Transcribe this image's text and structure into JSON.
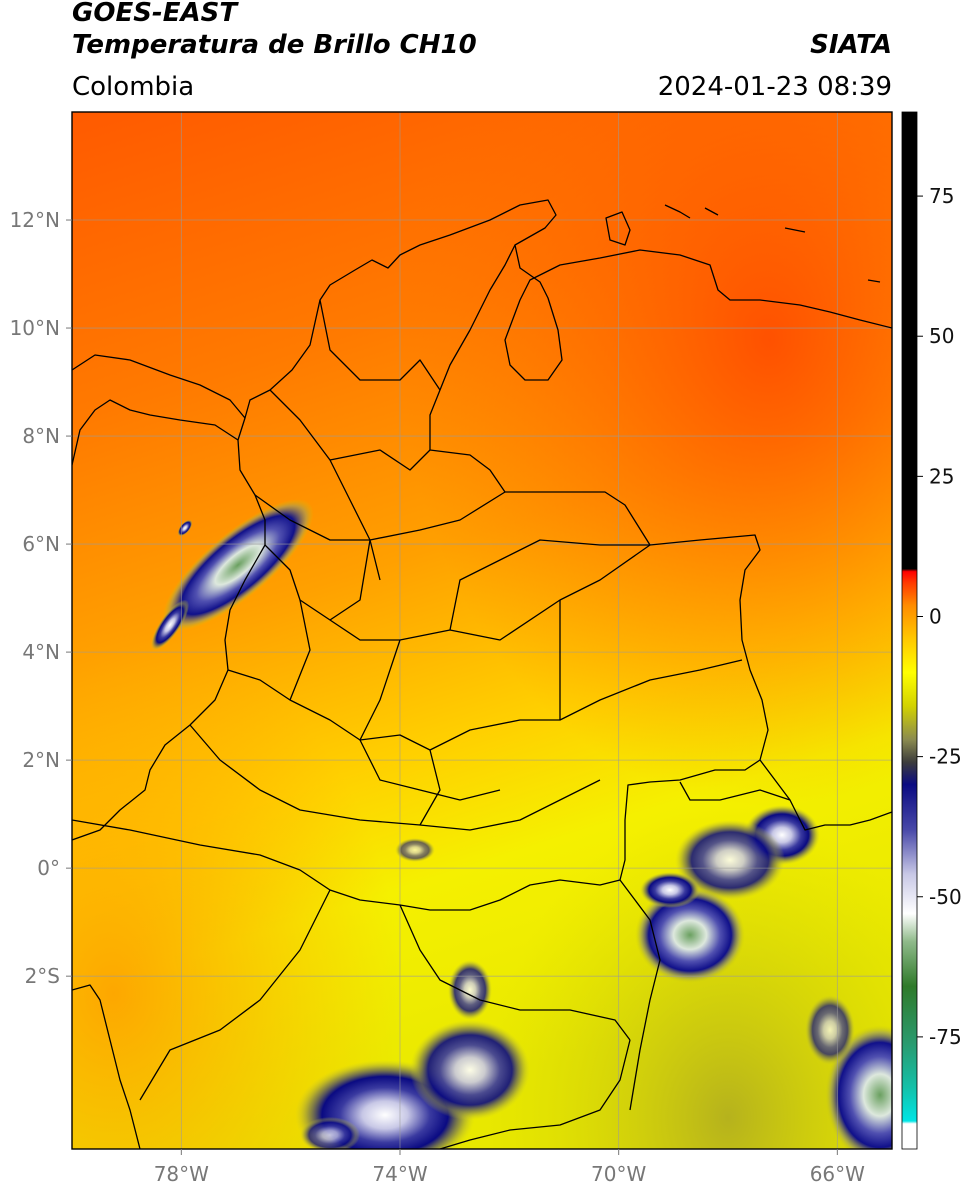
{
  "header": {
    "title_line1": "GOES-EAST",
    "title_line2": "Temperatura de Brillo CH10",
    "brand": "SIATA",
    "region": "Colombia",
    "datetime": "2024-01-23 08:39"
  },
  "map": {
    "lon_ticks": [
      {
        "value": -78,
        "label": "78°W"
      },
      {
        "value": -74,
        "label": "74°W"
      },
      {
        "value": -70,
        "label": "70°W"
      },
      {
        "value": -66,
        "label": "66°W"
      }
    ],
    "lat_ticks": [
      {
        "value": 12,
        "label": "12°N"
      },
      {
        "value": 10,
        "label": "10°N"
      },
      {
        "value": 8,
        "label": "8°N"
      },
      {
        "value": 6,
        "label": "6°N"
      },
      {
        "value": 4,
        "label": "4°N"
      },
      {
        "value": 2,
        "label": "2°N"
      },
      {
        "value": 0,
        "label": "0°"
      },
      {
        "value": -2,
        "label": "2°S"
      }
    ],
    "extent": {
      "lon_min": -80,
      "lon_max": -65,
      "lat_min": -5.2,
      "lat_max": 14
    }
  },
  "colorbar": {
    "range": [
      -95,
      90
    ],
    "ticks": [
      {
        "value": 75,
        "label": "75"
      },
      {
        "value": 50,
        "label": "50"
      },
      {
        "value": 25,
        "label": "25"
      },
      {
        "value": 0,
        "label": "0"
      },
      {
        "value": -25,
        "label": "-25"
      },
      {
        "value": -50,
        "label": "-50"
      },
      {
        "value": -75,
        "label": "-75"
      }
    ],
    "stops": [
      {
        "value": -95,
        "color": "#ffffff"
      },
      {
        "value": -90.5,
        "color": "#ffffff"
      },
      {
        "value": -90,
        "color": "#00e5e5"
      },
      {
        "value": -84,
        "color": "#14c0a8"
      },
      {
        "value": -76,
        "color": "#2a9a6e"
      },
      {
        "value": -66,
        "color": "#2f7a2a"
      },
      {
        "value": -58,
        "color": "#8fba8a"
      },
      {
        "value": -53,
        "color": "#ffffff"
      },
      {
        "value": -46,
        "color": "#c8c8e6"
      },
      {
        "value": -38,
        "color": "#4848a8"
      },
      {
        "value": -30,
        "color": "#0a0a82"
      },
      {
        "value": -26,
        "color": "#3c3c3c"
      },
      {
        "value": -22,
        "color": "#8a8a50"
      },
      {
        "value": -16,
        "color": "#d2d200"
      },
      {
        "value": -10,
        "color": "#ffff00"
      },
      {
        "value": -4,
        "color": "#ffc800"
      },
      {
        "value": 2,
        "color": "#ff8c00"
      },
      {
        "value": 6,
        "color": "#ff3a00"
      },
      {
        "value": 8,
        "color": "#ff0000"
      },
      {
        "value": 8.5,
        "color": "#000000"
      },
      {
        "value": 90,
        "color": "#000000"
      }
    ]
  }
}
